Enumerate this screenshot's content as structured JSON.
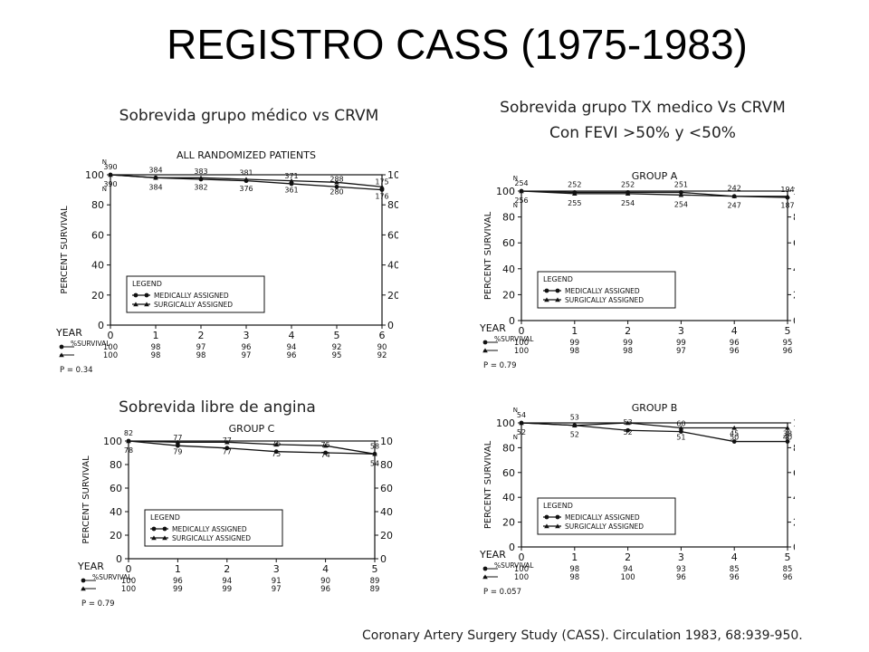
{
  "slide": {
    "title": "REGISTRO CASS (1975-1983)",
    "captions": {
      "top_left": "Sobrevida  grupo médico vs CRVM",
      "top_right_line1": "Sobrevida grupo TX medico Vs CRVM",
      "top_right_line2": "Con FEVI >50% y <50%",
      "bottom_left": "Sobrevida libre de angina"
    },
    "citation": "Coronary Artery Surgery Study (CASS). Circulation 1983, 68:939-950."
  },
  "colors": {
    "ink": "#111111",
    "background": "#ffffff"
  },
  "chart_data": [
    {
      "type": "line",
      "title": "ALL RANDOMIZED PATIENTS",
      "ylabel": "PERCENT SURVIVAL",
      "xlabel": "YEAR",
      "x": [
        0,
        1,
        2,
        3,
        4,
        5,
        6
      ],
      "xlim": [
        0,
        6
      ],
      "ylim": [
        0,
        100
      ],
      "yticks": [
        0,
        20,
        40,
        60,
        80,
        100
      ],
      "grid": false,
      "legend_title": "LEGEND",
      "legend_position": "lower-left",
      "series": [
        {
          "name": "MEDICALLY ASSIGNED",
          "marker": "circle",
          "values": [
            100,
            98,
            97,
            96,
            94,
            92,
            90
          ],
          "n": [
            "390",
            "384",
            "383",
            "381",
            "371",
            "288",
            "175"
          ]
        },
        {
          "name": "SURGICALLY ASSIGNED",
          "marker": "triangle",
          "values": [
            100,
            98,
            98,
            97,
            96,
            95,
            92
          ],
          "n": [
            "390",
            "384",
            "382",
            "376",
            "361",
            "280",
            "176"
          ]
        }
      ],
      "n_label": "N",
      "survival_label": "%SURVIVAL",
      "survival_table": [
        [
          "100",
          "98",
          "97",
          "96",
          "94",
          "92",
          "90"
        ],
        [
          "100",
          "98",
          "98",
          "97",
          "96",
          "95",
          "92"
        ]
      ],
      "p_value": "P = 0.34"
    },
    {
      "type": "line",
      "title": "GROUP A",
      "ylabel": "PERCENT SURVIVAL",
      "xlabel": "YEAR",
      "x": [
        0,
        1,
        2,
        3,
        4,
        5
      ],
      "xlim": [
        0,
        5
      ],
      "ylim": [
        0,
        100
      ],
      "yticks": [
        0,
        20,
        40,
        60,
        80,
        100
      ],
      "grid": false,
      "legend_title": "LEGEND",
      "legend_position": "lower-left",
      "series": [
        {
          "name": "MEDICALLY ASSIGNED",
          "marker": "circle",
          "values": [
            100,
            99,
            99,
            99,
            96,
            95
          ],
          "n": [
            "254",
            "252",
            "252",
            "251",
            "242",
            "194"
          ]
        },
        {
          "name": "SURGICALLY ASSIGNED",
          "marker": "triangle",
          "values": [
            100,
            98,
            98,
            97,
            96,
            96
          ],
          "n": [
            "256",
            "255",
            "254",
            "254",
            "247",
            "187"
          ]
        }
      ],
      "n_label": "N",
      "survival_label": "%SURVIVAL",
      "survival_table": [
        [
          "100",
          "99",
          "99",
          "99",
          "96",
          "95"
        ],
        [
          "100",
          "98",
          "98",
          "97",
          "96",
          "96"
        ]
      ],
      "p_value": "P = 0.79"
    },
    {
      "type": "line",
      "title": "GROUP C",
      "ylabel": "PERCENT SURVIVAL",
      "xlabel": "YEAR",
      "x": [
        0,
        1,
        2,
        3,
        4,
        5
      ],
      "xlim": [
        0,
        5
      ],
      "ylim": [
        0,
        100
      ],
      "yticks": [
        0,
        20,
        40,
        60,
        80,
        100
      ],
      "grid": false,
      "legend_title": "LEGEND",
      "legend_position": "lower-left",
      "series": [
        {
          "name": "MEDICALLY ASSIGNED",
          "marker": "circle",
          "values": [
            100,
            96,
            94,
            91,
            90,
            89
          ],
          "n": [
            "82",
            "77",
            "77",
            "76",
            "75",
            "58"
          ]
        },
        {
          "name": "SURGICALLY ASSIGNED",
          "marker": "triangle",
          "values": [
            100,
            99,
            99,
            97,
            96,
            89
          ],
          "n": [
            "78",
            "79",
            "77",
            "75",
            "74",
            "54"
          ]
        }
      ],
      "survival_label": "%SURVIVAL",
      "survival_table": [
        [
          "100",
          "96",
          "94",
          "91",
          "90",
          "89"
        ],
        [
          "100",
          "99",
          "99",
          "97",
          "96",
          "89"
        ]
      ],
      "p_value": "P = 0.79"
    },
    {
      "type": "line",
      "title": "GROUP B",
      "ylabel": "PERCENT SURVIVAL",
      "xlabel": "YEAR",
      "x": [
        0,
        1,
        2,
        3,
        4,
        5
      ],
      "xlim": [
        0,
        5
      ],
      "ylim": [
        0,
        100
      ],
      "yticks": [
        0,
        20,
        40,
        60,
        80,
        100
      ],
      "grid": false,
      "legend_title": "LEGEND",
      "legend_position": "lower-left",
      "series": [
        {
          "name": "MEDICALLY ASSIGNED",
          "marker": "circle",
          "values": [
            100,
            98,
            94,
            93,
            85,
            85
          ],
          "n": [
            "54",
            "53",
            "53",
            "60",
            "45",
            "38"
          ]
        },
        {
          "name": "SURGICALLY ASSIGNED",
          "marker": "triangle",
          "values": [
            100,
            98,
            100,
            96,
            96,
            96
          ],
          "n": [
            "52",
            "52",
            "52",
            "51",
            "50",
            "40"
          ]
        }
      ],
      "n_label": "N",
      "survival_label": "%SURVIVAL",
      "survival_table": [
        [
          "100",
          "98",
          "94",
          "93",
          "85",
          "85"
        ],
        [
          "100",
          "98",
          "100",
          "96",
          "96",
          "96"
        ]
      ],
      "p_value": "P = 0.057"
    }
  ]
}
